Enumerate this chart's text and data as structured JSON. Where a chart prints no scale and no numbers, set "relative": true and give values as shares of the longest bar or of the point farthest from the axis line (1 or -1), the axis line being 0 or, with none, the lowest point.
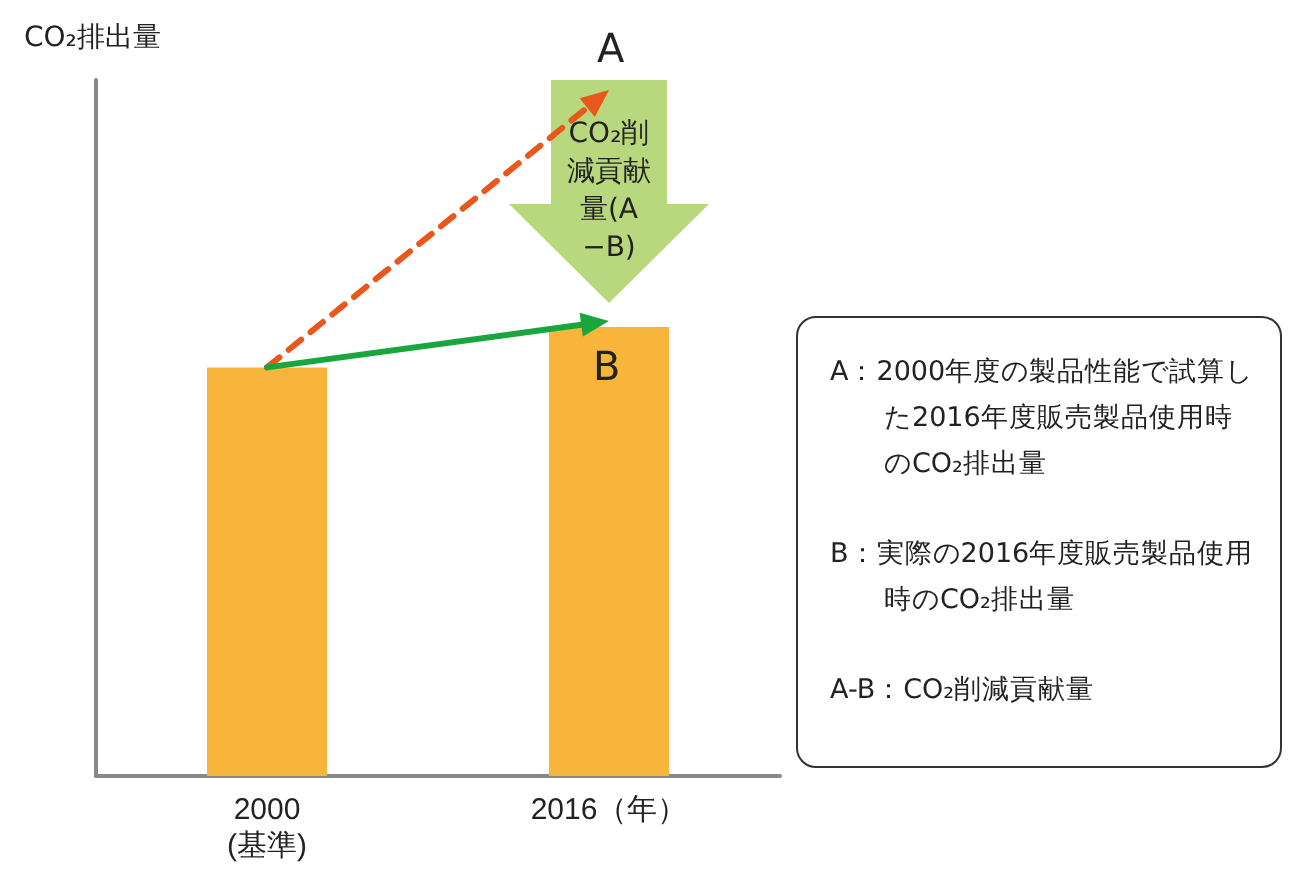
{
  "chart_data": {
    "type": "bar",
    "relative": true,
    "categories": [
      "2000\n(基準)",
      "2016（年）"
    ],
    "values": [
      0.91,
      1
    ],
    "color": "#f7b53c",
    "grid": false,
    "annotations": [
      "A",
      "B",
      "CO₂削減貢献量(A−B)",
      "A：2000年度の製品性能で試算した2016年度販売製品使用時のCO₂排出量",
      "B：実際の2016年度販売製品使用時のCO₂排出量",
      "A-B：CO₂削減貢献量",
      "CO₂排出量"
    ]
  }
}
